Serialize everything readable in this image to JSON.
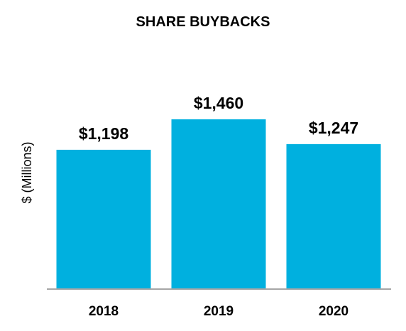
{
  "chart_data": {
    "type": "bar",
    "title": "SHARE BUYBACKS",
    "xlabel": "",
    "ylabel": "$ (Millions)",
    "categories": [
      "2018",
      "2019",
      "2020"
    ],
    "values": [
      1198,
      1460,
      1247
    ],
    "data_labels": [
      "$1,198",
      "$1,460",
      "$1,247"
    ],
    "ylim": [
      0,
      1460
    ],
    "grid": false,
    "legend": "none",
    "colors": {
      "bar": "#00B0DF",
      "axis": "#A6A6A6"
    }
  }
}
